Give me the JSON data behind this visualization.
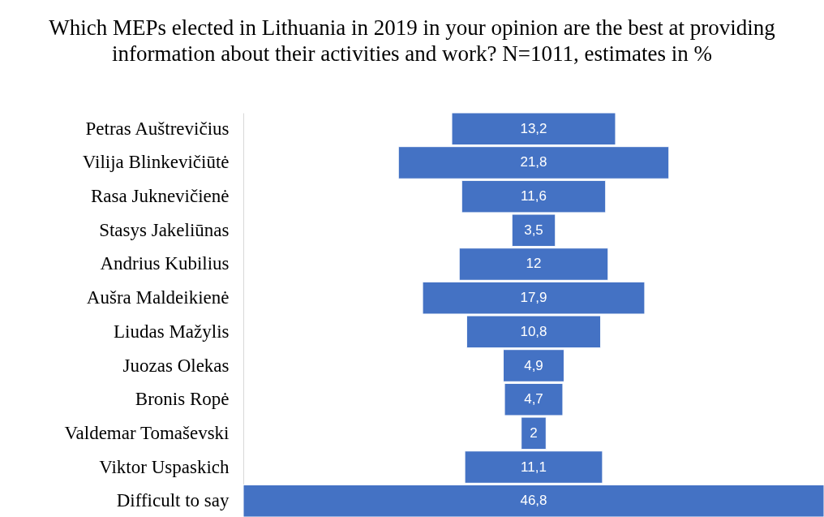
{
  "chart_data": {
    "type": "other",
    "title": "Which MEPs elected in Lithuania in 2019 in your opinion are the best at providing information about their activities and work? N=1011, estimates in %",
    "categories": [
      "Petras Auštrevičius",
      "Vilija Blinkevičiūtė",
      "Rasa Juknevičienė",
      "Stasys Jakeliūnas",
      "Andrius Kubilius",
      "Aušra Maldeikienė",
      "Liudas Mažylis",
      "Juozas Olekas",
      "Bronis Ropė",
      "Valdemar Tomaševski",
      "Viktor Uspaskich",
      "Difficult to say"
    ],
    "values": [
      13.2,
      21.8,
      11.6,
      3.5,
      12,
      17.9,
      10.8,
      4.9,
      4.7,
      2,
      11.1,
      46.8
    ],
    "value_labels": [
      "13,2",
      "21,8",
      "11,6",
      "3,5",
      "12",
      "17,9",
      "10,8",
      "4,9",
      "4,7",
      "2",
      "11,1",
      "46,8"
    ],
    "color": "#4472c4"
  }
}
